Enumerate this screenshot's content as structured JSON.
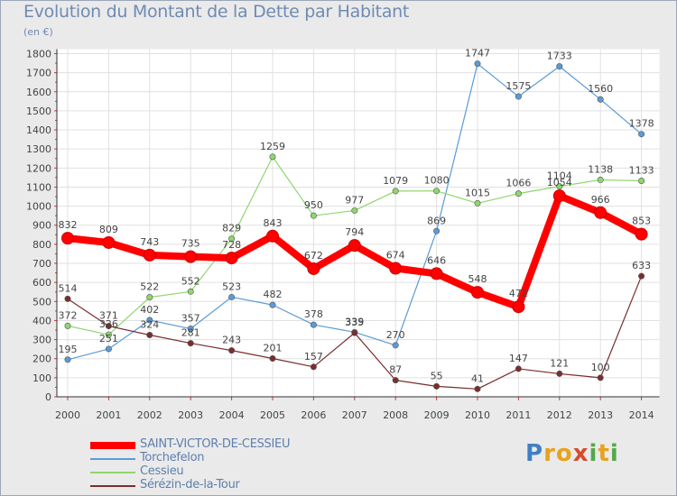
{
  "title": "Evolution du Montant de la Dette par Habitant",
  "unit_label": "(en €)",
  "brand": "Proxiti",
  "chart_data": {
    "type": "line",
    "title": "Evolution du Montant de la Dette par Habitant",
    "ylabel": "(en €)",
    "xlabel": "",
    "ylim": [
      0,
      1800
    ],
    "yticks": [
      0,
      100,
      200,
      300,
      400,
      500,
      600,
      700,
      800,
      900,
      1000,
      1100,
      1200,
      1300,
      1400,
      1500,
      1600,
      1700,
      1800
    ],
    "grid": true,
    "legend_position": "bottom-left",
    "x": [
      "2000",
      "2001",
      "2002",
      "2003",
      "2004",
      "2005",
      "2006",
      "2007",
      "2008",
      "2009",
      "2010",
      "2011",
      "2012",
      "2013",
      "2014"
    ],
    "series": [
      {
        "name": "Torchefelon",
        "color": "#5b9bd5",
        "values": [
          195,
          251,
          402,
          357,
          523,
          482,
          378,
          339,
          270,
          869,
          1747,
          1575,
          1733,
          1560,
          1378
        ]
      },
      {
        "name": "Cessieu",
        "color": "#8fd66e",
        "values": [
          372,
          326,
          522,
          552,
          829,
          1259,
          950,
          977,
          1079,
          1080,
          1015,
          1066,
          1104,
          1138,
          1133
        ]
      },
      {
        "name": "Sérézin-de-la-Tour",
        "color": "#7b2d2d",
        "values": [
          514,
          371,
          324,
          281,
          243,
          201,
          157,
          335,
          87,
          55,
          41,
          147,
          121,
          100,
          633
        ]
      },
      {
        "name": "SAINT-VICTOR-DE-CESSIEU",
        "color": "#ff0000",
        "values": [
          832,
          809,
          743,
          735,
          728,
          843,
          672,
          794,
          674,
          646,
          548,
          472,
          1054,
          966,
          853
        ]
      }
    ],
    "legend_order": [
      "SAINT-VICTOR-DE-CESSIEU",
      "Torchefelon",
      "Cessieu",
      "Sérézin-de-la-Tour"
    ]
  }
}
